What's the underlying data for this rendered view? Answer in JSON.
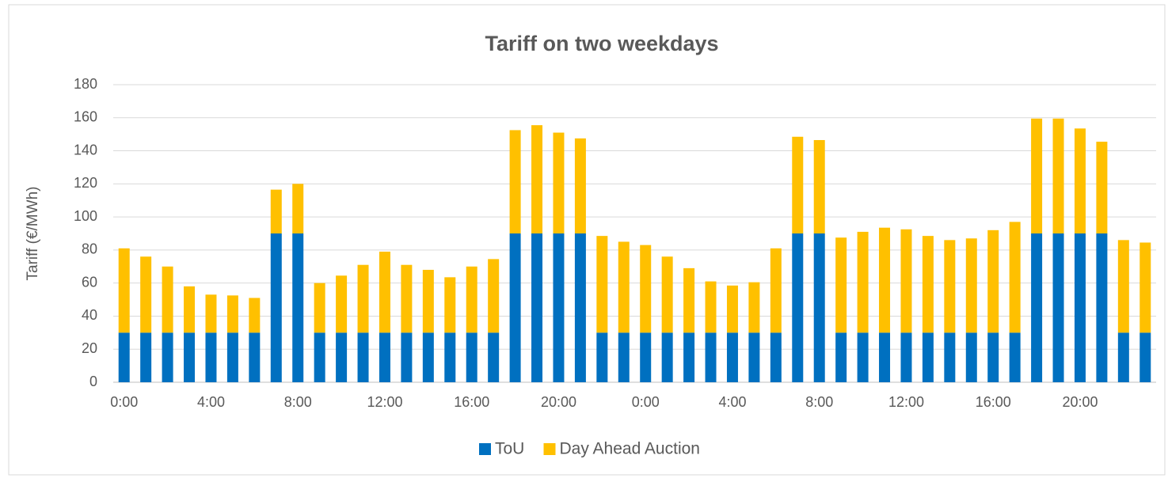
{
  "chart_data": {
    "type": "stacked_bar",
    "title": "Tariff on two weekdays",
    "y_label": "Tariff (€/MWh)",
    "categories": [
      "0:00",
      null,
      null,
      null,
      "4:00",
      null,
      null,
      null,
      "8:00",
      null,
      null,
      null,
      "12:00",
      null,
      null,
      null,
      "16:00",
      null,
      null,
      null,
      "20:00",
      null,
      null,
      null,
      "0:00",
      null,
      null,
      null,
      "4:00",
      null,
      null,
      null,
      "8:00",
      null,
      null,
      null,
      "12:00",
      null,
      null,
      null,
      "16:00",
      null,
      null,
      null,
      "20:00",
      null,
      null,
      null
    ],
    "series": [
      {
        "name": "ToU",
        "color": "#0070c0",
        "values": [
          30,
          30,
          30,
          30,
          30,
          30,
          30,
          90,
          90,
          30,
          30,
          30,
          30,
          30,
          30,
          30,
          30,
          30,
          90,
          90,
          90,
          90,
          30,
          30,
          30,
          30,
          30,
          30,
          30,
          30,
          30,
          90,
          90,
          30,
          30,
          30,
          30,
          30,
          30,
          30,
          30,
          30,
          90,
          90,
          90,
          90,
          30,
          30
        ]
      },
      {
        "name": "Day Ahead Auction",
        "color": "#ffc000",
        "values": [
          51,
          46,
          40,
          28,
          23,
          22.5,
          21,
          26.5,
          30,
          30,
          34.5,
          41,
          49,
          41,
          38,
          33.5,
          40,
          44.5,
          62.5,
          65.5,
          61,
          57.5,
          58.5,
          55,
          53,
          46,
          39,
          31,
          28.5,
          30.5,
          51,
          58.5,
          56.5,
          57.5,
          61,
          63.5,
          62.5,
          58.5,
          56,
          57,
          62,
          67,
          69.5,
          69.5,
          63.5,
          55.5,
          56,
          54.5
        ]
      }
    ],
    "ylim": [
      0,
      180
    ],
    "yticks": [
      0,
      20,
      40,
      60,
      80,
      100,
      120,
      140,
      160,
      180
    ],
    "grid": true,
    "legend": "bottom"
  }
}
